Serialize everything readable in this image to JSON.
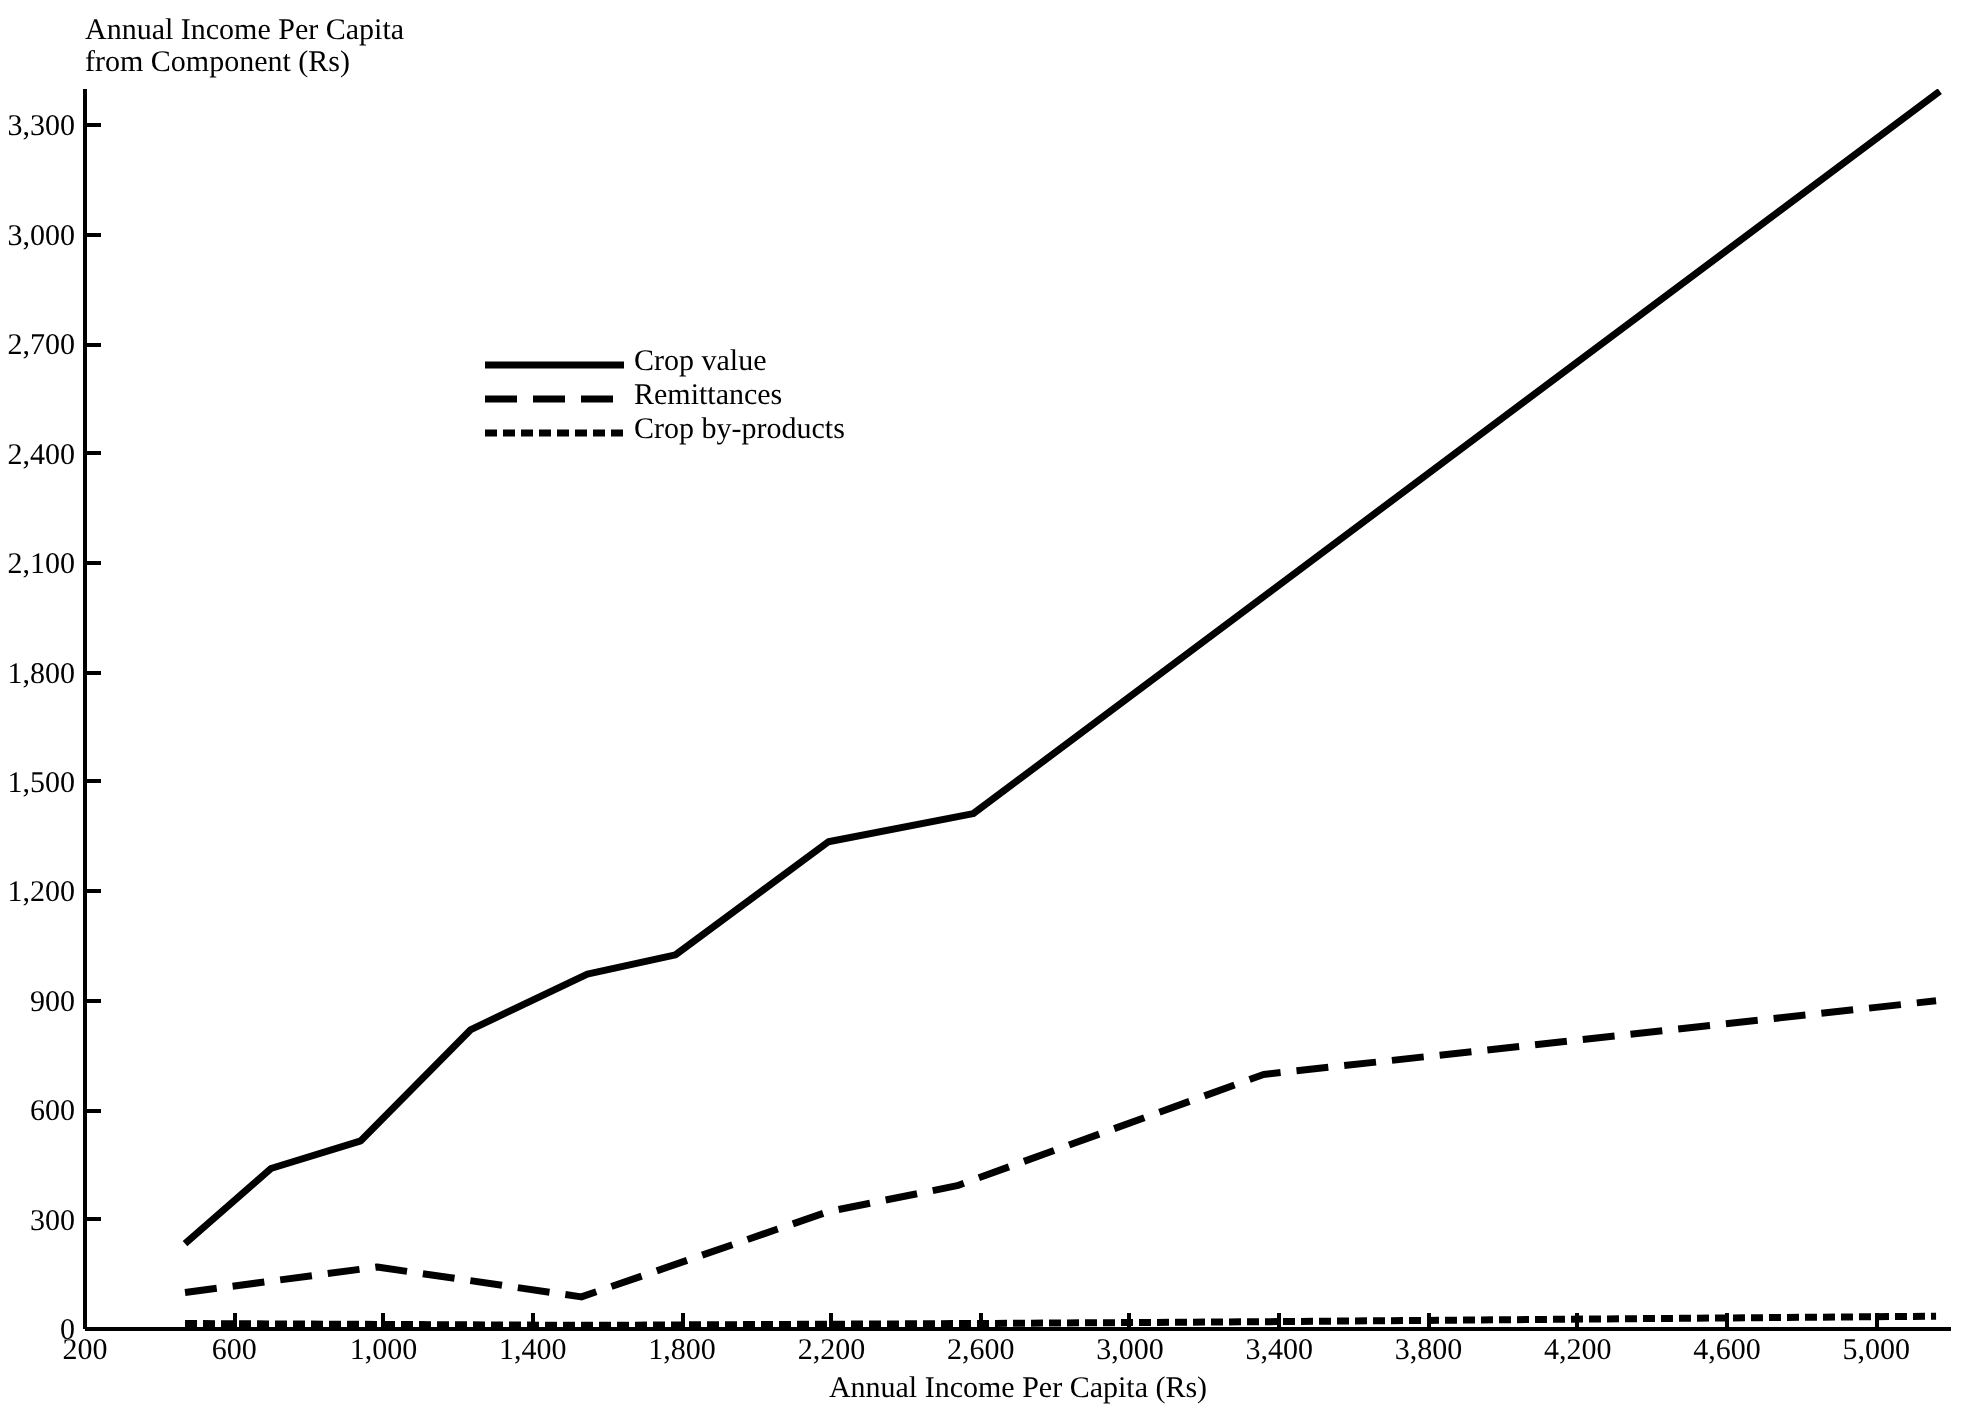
{
  "chart_data": {
    "type": "line",
    "xlabel": "Annual Income Per Capita (Rs)",
    "ylabel": "Annual Income  Per Capita\nfrom  Component (Rs)",
    "series": [
      {
        "name": "Crop value",
        "color": "#000000",
        "line_style": "solid",
        "x": [
          468,
          698,
          939,
          1234,
          1546,
          1782,
          2192,
          2580,
          5170
        ],
        "values": [
          234,
          440,
          516,
          821,
          973,
          1026,
          1336,
          1413,
          3394
        ]
      },
      {
        "name": "Remittances",
        "color": "#000000",
        "line_style": "dashed",
        "x": [
          468,
          983,
          1530,
          2192,
          2537,
          3358,
          5160
        ],
        "values": [
          100,
          170,
          88,
          322,
          393,
          698,
          900
        ]
      },
      {
        "name": "Crop by-products",
        "color": "#000000",
        "line_style": "dotted",
        "x": [
          468,
          1546,
          2580,
          3358,
          5160
        ],
        "values": [
          15,
          10,
          15,
          20,
          35
        ]
      }
    ],
    "xlim": [
      200,
      5200
    ],
    "ylim": [
      0,
      3400
    ],
    "xticks": [
      200,
      {
        "value": 600,
        "label": "600"
      },
      {
        "value": 1000,
        "label": "1,000"
      },
      {
        "value": 1400,
        "label": "1,400"
      },
      {
        "value": 1800,
        "label": "1,800"
      },
      {
        "value": 2200,
        "label": "2,200"
      },
      {
        "value": 2600,
        "label": "2,600"
      },
      {
        "value": 3000,
        "label": "3,000"
      },
      {
        "value": 3400,
        "label": "3,400"
      },
      {
        "value": 3800,
        "label": "3,800"
      },
      {
        "value": 4200,
        "label": "4,200"
      },
      {
        "value": 4600,
        "label": "4,600"
      },
      {
        "value": 5000,
        "label": "5,000"
      }
    ],
    "yticks": [
      0,
      300,
      600,
      900,
      {
        "value": 1200,
        "label": "1,200"
      },
      {
        "value": 1500,
        "label": "1,500"
      },
      {
        "value": 1800,
        "label": "1,800"
      },
      {
        "value": 2100,
        "label": "2,100"
      },
      {
        "value": 2400,
        "label": "2,400"
      },
      {
        "value": 2700,
        "label": "2,700"
      },
      {
        "value": 3000,
        "label": "3,000"
      },
      {
        "value": 3300,
        "label": "3,300"
      }
    ],
    "grid": false,
    "legend": "top left"
  }
}
